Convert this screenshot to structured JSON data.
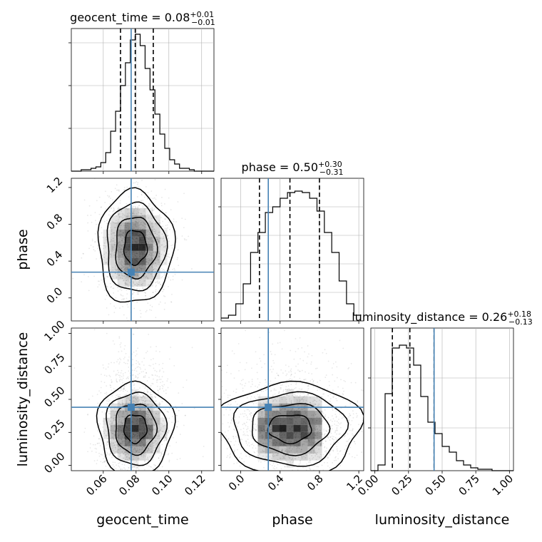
{
  "chart_data": {
    "type": "corner",
    "parameters": [
      "geocent_time",
      "phase",
      "luminosity_distance"
    ],
    "truth": {
      "geocent_time": 0.077,
      "phase": 0.28,
      "luminosity_distance": 0.44
    },
    "truth_color": "#4682b4",
    "grid": true,
    "diagonal": [
      {
        "param": "geocent_time",
        "title": {
          "name": "geocent_time",
          "value": "0.08",
          "plus": "+0.01",
          "minus": "−0.01"
        },
        "xlim": [
          0.0405,
          0.1275
        ],
        "ylim": [
          0,
          1
        ],
        "quantiles": [
          0.0705,
          0.0795,
          0.0905
        ],
        "hist_edges": [
          0.0405,
          0.0435,
          0.0465,
          0.0495,
          0.0525,
          0.0555,
          0.0585,
          0.0615,
          0.0645,
          0.0675,
          0.0705,
          0.0735,
          0.0765,
          0.0795,
          0.0825,
          0.0855,
          0.0885,
          0.0915,
          0.0945,
          0.0975,
          0.1005,
          0.1035,
          0.1065,
          0.1095,
          0.1125,
          0.1155,
          0.1185,
          0.1215,
          0.1245,
          0.1275
        ],
        "hist_counts": [
          0,
          0,
          0.01,
          0.01,
          0.02,
          0.03,
          0.06,
          0.13,
          0.28,
          0.42,
          0.6,
          0.76,
          0.92,
          0.96,
          0.88,
          0.72,
          0.57,
          0.4,
          0.26,
          0.16,
          0.08,
          0.05,
          0.02,
          0.02,
          0.01,
          0,
          0,
          0,
          0
        ],
        "yticks": [
          0.3,
          0.6,
          0.9
        ]
      },
      {
        "param": "phase",
        "title": {
          "name": "phase",
          "value": "0.50",
          "plus": "+0.30",
          "minus": "−0.31"
        },
        "xlim": [
          -0.2,
          1.25
        ],
        "ylim": [
          0,
          1
        ],
        "quantiles": [
          0.19,
          0.5,
          0.8
        ],
        "hist_edges": [
          -0.2,
          -0.125,
          -0.05,
          0.025,
          0.1,
          0.175,
          0.25,
          0.325,
          0.4,
          0.475,
          0.55,
          0.625,
          0.7,
          0.775,
          0.85,
          0.925,
          1.0,
          1.075,
          1.15,
          1.225
        ],
        "hist_counts": [
          0.02,
          0.04,
          0.12,
          0.26,
          0.48,
          0.62,
          0.76,
          0.8,
          0.86,
          0.9,
          0.91,
          0.9,
          0.86,
          0.77,
          0.62,
          0.48,
          0.28,
          0.12,
          0.04
        ],
        "yticks": [
          0.2,
          0.4,
          0.6,
          0.8
        ]
      },
      {
        "param": "luminosity_distance",
        "title": {
          "name": "luminosity_distance",
          "value": "0.26",
          "plus": "+0.18",
          "minus": "−0.13"
        },
        "xlim": [
          -0.03,
          1.03
        ],
        "ylim": [
          0,
          1
        ],
        "quantiles": [
          0.13,
          0.26,
          0.44
        ],
        "hist_edges": [
          -0.03,
          0.023,
          0.076,
          0.129,
          0.182,
          0.235,
          0.288,
          0.341,
          0.394,
          0.447,
          0.5,
          0.553,
          0.606,
          0.659,
          0.712,
          0.765,
          0.818,
          0.871,
          0.924,
          0.977,
          1.03
        ],
        "hist_counts": [
          0,
          0.04,
          0.54,
          0.86,
          0.88,
          0.86,
          0.74,
          0.52,
          0.34,
          0.26,
          0.17,
          0.13,
          0.07,
          0.04,
          0.02,
          0.01,
          0.01,
          0,
          0,
          0
        ],
        "yticks": [
          0.3,
          0.65
        ]
      }
    ],
    "pairs": [
      {
        "x": "geocent_time",
        "y": "phase",
        "xlim": [
          0.0405,
          0.1275
        ],
        "ylim": [
          -0.25,
          1.3
        ],
        "xticks": [],
        "yticks": [
          0.0,
          0.4,
          0.8,
          1.2
        ],
        "center": [
          0.0795,
          0.55
        ],
        "spread": [
          0.0095,
          0.28
        ]
      },
      {
        "x": "geocent_time",
        "y": "luminosity_distance",
        "xlim": [
          0.0405,
          0.1275
        ],
        "ylim": [
          -0.04,
          1.04
        ],
        "xticks": [
          0.06,
          0.08,
          0.1,
          0.12
        ],
        "yticks": [
          0.0,
          0.25,
          0.5,
          0.75,
          1.0
        ],
        "center": [
          0.0795,
          0.28
        ],
        "spread": [
          0.0095,
          0.16
        ]
      },
      {
        "x": "phase",
        "y": "luminosity_distance",
        "xlim": [
          -0.2,
          1.25
        ],
        "ylim": [
          -0.04,
          1.04
        ],
        "xticks": [
          0.0,
          0.4,
          0.8,
          1.2
        ],
        "yticks": [],
        "center": [
          0.5,
          0.28
        ],
        "spread": [
          0.3,
          0.16
        ]
      }
    ],
    "tick_labels": {
      "geocent_time": [
        "0.06",
        "0.08",
        "0.10",
        "0.12"
      ],
      "phase": [
        "0.0",
        "0.4",
        "0.8",
        "1.2"
      ],
      "luminosity_distance": [
        "0.00",
        "0.25",
        "0.50",
        "0.75",
        "1.00"
      ]
    },
    "axis_labels": {
      "x": [
        "geocent_time",
        "phase",
        "luminosity_distance"
      ],
      "y": [
        "phase",
        "luminosity_distance"
      ]
    }
  }
}
